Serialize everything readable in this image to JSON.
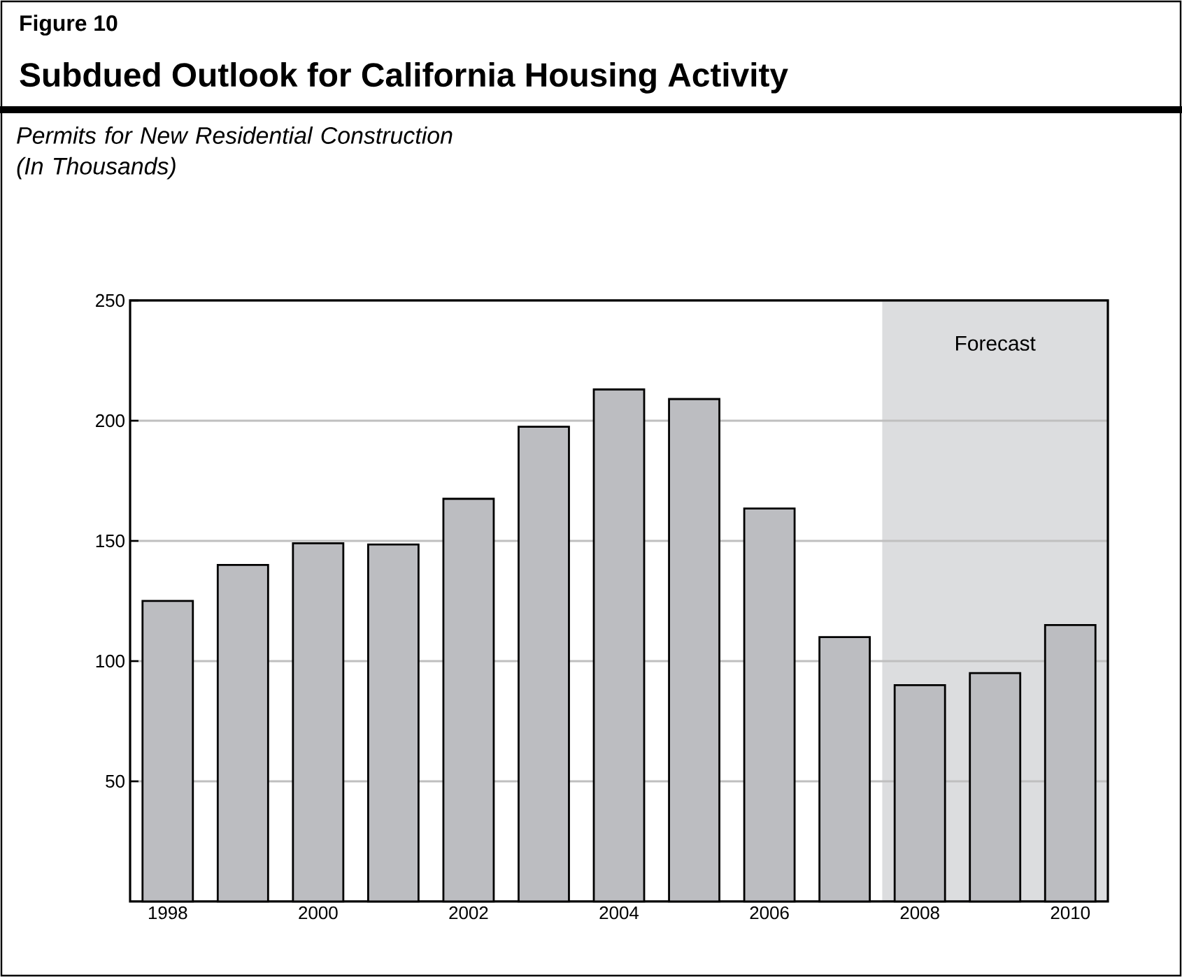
{
  "chart_data": {
    "type": "bar",
    "title": "Subdued Outlook for California Housing Activity",
    "subtitle": "Permits for New Residential Construction\n(In Thousands)",
    "annotations": [
      "Figure 10"
    ],
    "x": [
      1998,
      1999,
      2000,
      2001,
      2002,
      2003,
      2004,
      2005,
      2006,
      2007,
      2008,
      2009,
      2010
    ],
    "values": [
      125,
      140,
      149,
      148.5,
      167.5,
      197.5,
      213,
      209,
      163.5,
      110,
      90,
      95,
      115
    ],
    "color": "#bcbdc1",
    "xlim": [
      1997.5,
      2010.5
    ],
    "xticks": [
      1998,
      2000,
      2002,
      2004,
      2006,
      2008,
      2010
    ],
    "ylim": [
      0,
      250
    ],
    "yticks": [
      50,
      100,
      150,
      200,
      250
    ],
    "grid": "y",
    "bands": [
      {
        "axis": "x",
        "from": 2007.5,
        "to": 2010.5,
        "label": "Forecast",
        "color": "#dcdddf"
      }
    ]
  }
}
